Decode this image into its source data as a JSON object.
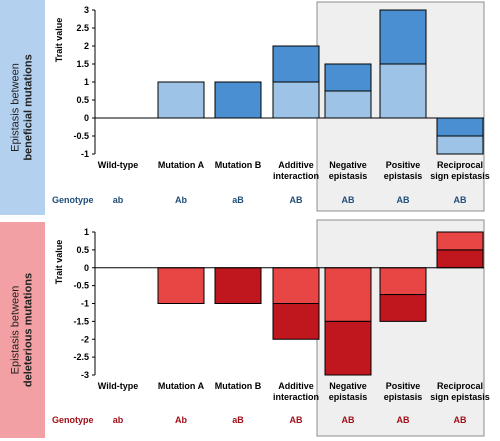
{
  "chart_data": [
    {
      "type": "bar",
      "stacked": true,
      "side_label": [
        "Epistasis between",
        "beneficial mutations"
      ],
      "ylabel": "Trait value",
      "ylim": [
        -1,
        3
      ],
      "yticks": [
        "3",
        "2.5",
        "2",
        "1.5",
        "1",
        "0.5",
        "0",
        "-0.5",
        "-1"
      ],
      "categories": [
        {
          "label": [
            "Wild-type"
          ],
          "genotype": "ab",
          "segments": [],
          "highlighted": false
        },
        {
          "label": [
            "Mutation A"
          ],
          "genotype": "Ab",
          "segments": [
            {
              "from": 0,
              "to": 1,
              "color": "#9dc3e6"
            }
          ],
          "highlighted": false
        },
        {
          "label": [
            "Mutation B"
          ],
          "genotype": "aB",
          "segments": [
            {
              "from": 0,
              "to": 1,
              "color": "#4a8fd1"
            }
          ],
          "highlighted": false
        },
        {
          "label": [
            "Additive",
            "interaction"
          ],
          "genotype": "AB",
          "segments": [
            {
              "from": 0,
              "to": 1,
              "color": "#9dc3e6"
            },
            {
              "from": 1,
              "to": 2,
              "color": "#4a8fd1"
            }
          ],
          "highlighted": false
        },
        {
          "label": [
            "Negative",
            "epistasis"
          ],
          "genotype": "AB",
          "segments": [
            {
              "from": 0,
              "to": 0.75,
              "color": "#9dc3e6"
            },
            {
              "from": 0.75,
              "to": 1.5,
              "color": "#4a8fd1"
            }
          ],
          "highlighted": true
        },
        {
          "label": [
            "Positive",
            "epistasis"
          ],
          "genotype": "AB",
          "segments": [
            {
              "from": 0,
              "to": 1.5,
              "color": "#9dc3e6"
            },
            {
              "from": 1.5,
              "to": 3,
              "color": "#4a8fd1"
            }
          ],
          "highlighted": true
        },
        {
          "label": [
            "Reciprocal",
            "sign epistasis"
          ],
          "genotype": "AB",
          "segments": [
            {
              "from": 0,
              "to": -0.5,
              "color": "#4a8fd1"
            },
            {
              "from": -0.5,
              "to": -1,
              "color": "#9dc3e6"
            }
          ],
          "highlighted": true
        }
      ],
      "genotype_title": "Genotype",
      "genotype_color": "#1f4e79",
      "side_color": "#b4d0ef"
    },
    {
      "type": "bar",
      "stacked": true,
      "side_label": [
        "Epistasis between",
        "deleterious mutations"
      ],
      "ylabel": "Trait value",
      "ylim": [
        -3,
        1
      ],
      "yticks": [
        "1",
        "0.5",
        "0",
        "-0.5",
        "-1",
        "-1.5",
        "-2",
        "-2.5",
        "-3"
      ],
      "categories": [
        {
          "label": [
            "Wild-type"
          ],
          "genotype": "ab",
          "segments": [],
          "highlighted": false
        },
        {
          "label": [
            "Mutation A"
          ],
          "genotype": "Ab",
          "segments": [
            {
              "from": 0,
              "to": -1,
              "color": "#e84545"
            }
          ],
          "highlighted": false
        },
        {
          "label": [
            "Mutation B"
          ],
          "genotype": "aB",
          "segments": [
            {
              "from": 0,
              "to": -1,
              "color": "#c0161d"
            }
          ],
          "highlighted": false
        },
        {
          "label": [
            "Additive",
            "interaction"
          ],
          "genotype": "AB",
          "segments": [
            {
              "from": 0,
              "to": -1,
              "color": "#e84545"
            },
            {
              "from": -1,
              "to": -2,
              "color": "#c0161d"
            }
          ],
          "highlighted": false
        },
        {
          "label": [
            "Negative",
            "epistasis"
          ],
          "genotype": "AB",
          "segments": [
            {
              "from": 0,
              "to": -1.5,
              "color": "#e84545"
            },
            {
              "from": -1.5,
              "to": -3,
              "color": "#c0161d"
            }
          ],
          "highlighted": true
        },
        {
          "label": [
            "Positive",
            "epistasis"
          ],
          "genotype": "AB",
          "segments": [
            {
              "from": 0,
              "to": -0.75,
              "color": "#e84545"
            },
            {
              "from": -0.75,
              "to": -1.5,
              "color": "#c0161d"
            }
          ],
          "highlighted": true
        },
        {
          "label": [
            "Reciprocal",
            "sign epistasis"
          ],
          "genotype": "AB",
          "segments": [
            {
              "from": 0,
              "to": 0.5,
              "color": "#c0161d"
            },
            {
              "from": 0.5,
              "to": 1,
              "color": "#e84545"
            }
          ],
          "highlighted": true
        }
      ],
      "genotype_title": "Genotype",
      "genotype_color": "#a01018",
      "side_color": "#f2a0a4"
    }
  ]
}
